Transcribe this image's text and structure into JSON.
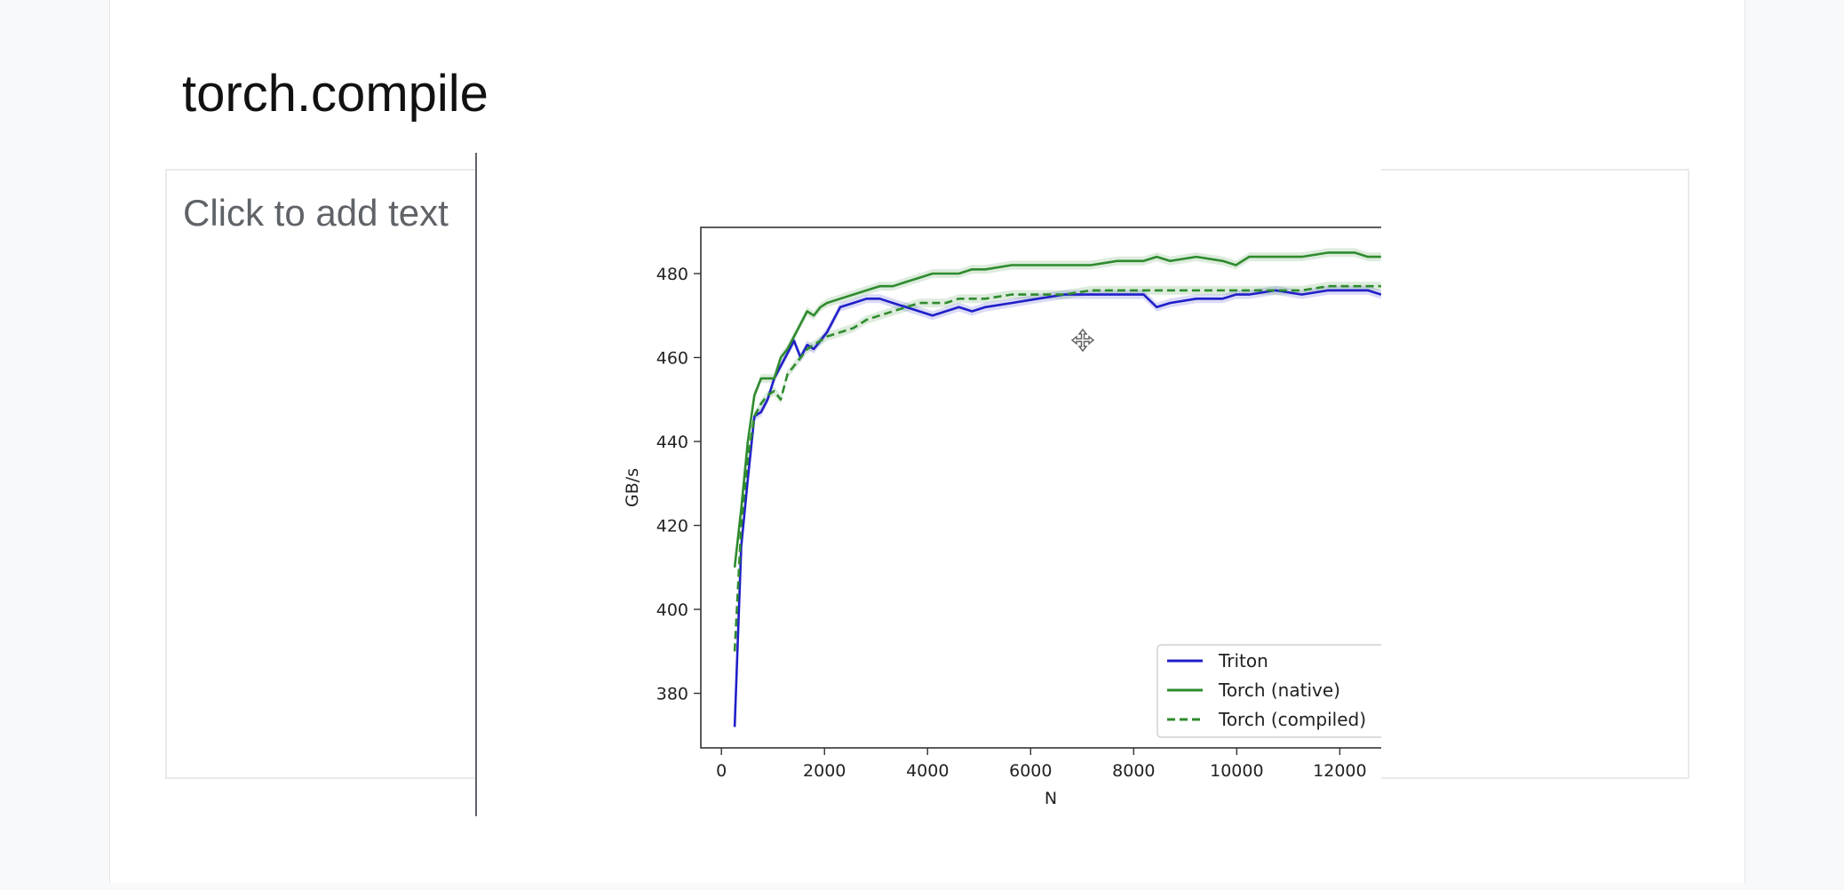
{
  "slide": {
    "title": "torch.compile",
    "placeholder": "Click to add text"
  },
  "colors": {
    "triton": "#1f1fc8",
    "torch": "#2e8b2e"
  },
  "icons": {
    "cursor": "move-cursor-icon"
  },
  "chart_data": {
    "type": "line",
    "title": "",
    "xlabel": "N",
    "ylabel": "GB/s",
    "xlim": [
      -400,
      13200
    ],
    "ylim": [
      367,
      491
    ],
    "xticks": [
      0,
      2000,
      4000,
      6000,
      8000,
      10000,
      12000
    ],
    "yticks": [
      380,
      400,
      420,
      440,
      460,
      480
    ],
    "xtick_labels": [
      "0",
      "2000",
      "4000",
      "6000",
      "8000",
      "10000",
      "12000"
    ],
    "ytick_labels": [
      "380",
      "400",
      "420",
      "440",
      "460",
      "480"
    ],
    "grid": false,
    "legend_position": "lower-right",
    "x": [
      256,
      384,
      512,
      640,
      768,
      896,
      1024,
      1152,
      1280,
      1408,
      1536,
      1664,
      1792,
      1920,
      2048,
      2304,
      2560,
      2816,
      3072,
      3328,
      3584,
      3840,
      4096,
      4352,
      4608,
      4864,
      5120,
      5632,
      6144,
      6656,
      7168,
      7680,
      8192,
      8448,
      8704,
      9216,
      9728,
      9984,
      10240,
      10752,
      11264,
      11776,
      12288,
      12544,
      12800
    ],
    "series": [
      {
        "name": "Triton",
        "style": "solid",
        "color": "#1f1fc8",
        "values": [
          372,
          415,
          431,
          446,
          447,
          450,
          455,
          458,
          461,
          464,
          460,
          463,
          462,
          464,
          466,
          472,
          473,
          474,
          474,
          473,
          472,
          471,
          470,
          471,
          472,
          471,
          472,
          473,
          474,
          475,
          475,
          475,
          475,
          472,
          473,
          474,
          474,
          475,
          475,
          476,
          475,
          476,
          476,
          476,
          475
        ]
      },
      {
        "name": "Torch (native)",
        "style": "solid",
        "color": "#2e8b2e",
        "values": [
          410,
          424,
          440,
          451,
          455,
          455,
          455,
          460,
          462,
          465,
          468,
          471,
          470,
          472,
          473,
          474,
          475,
          476,
          477,
          477,
          478,
          479,
          480,
          480,
          480,
          481,
          481,
          482,
          482,
          482,
          482,
          483,
          483,
          484,
          483,
          484,
          483,
          482,
          484,
          484,
          484,
          485,
          485,
          484,
          484
        ]
      },
      {
        "name": "Torch (compiled)",
        "style": "dashed",
        "color": "#2e8b2e",
        "values": [
          390,
          420,
          436,
          446,
          449,
          451,
          452,
          450,
          456,
          458,
          460,
          462,
          463,
          464,
          465,
          466,
          467,
          469,
          470,
          471,
          472,
          473,
          473,
          473,
          474,
          474,
          474,
          475,
          475,
          475,
          476,
          476,
          476,
          476,
          476,
          476,
          476,
          476,
          476,
          476,
          476,
          477,
          477,
          477,
          477
        ]
      }
    ]
  }
}
